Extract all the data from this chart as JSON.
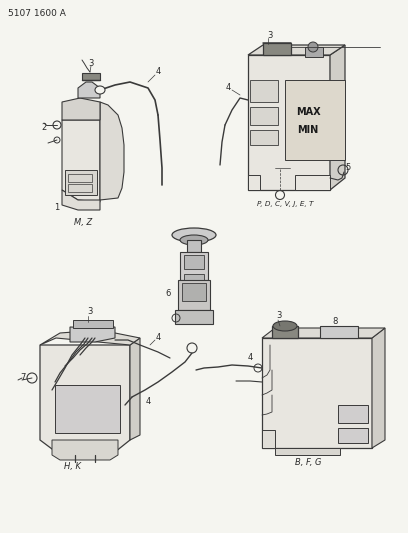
{
  "header": "5107 1600 A",
  "background_color": "#f5f5f0",
  "line_color": "#3a3a3a",
  "text_color": "#2a2a2a",
  "figsize": [
    4.08,
    5.33
  ],
  "dpi": 100,
  "labels": {
    "mz": "M, Z",
    "pdcvjet": "P, D, C, V, J, E, T",
    "hk": "H, K",
    "bfg": "B, F, G"
  },
  "max_text": "MAX",
  "min_text": "MIN"
}
